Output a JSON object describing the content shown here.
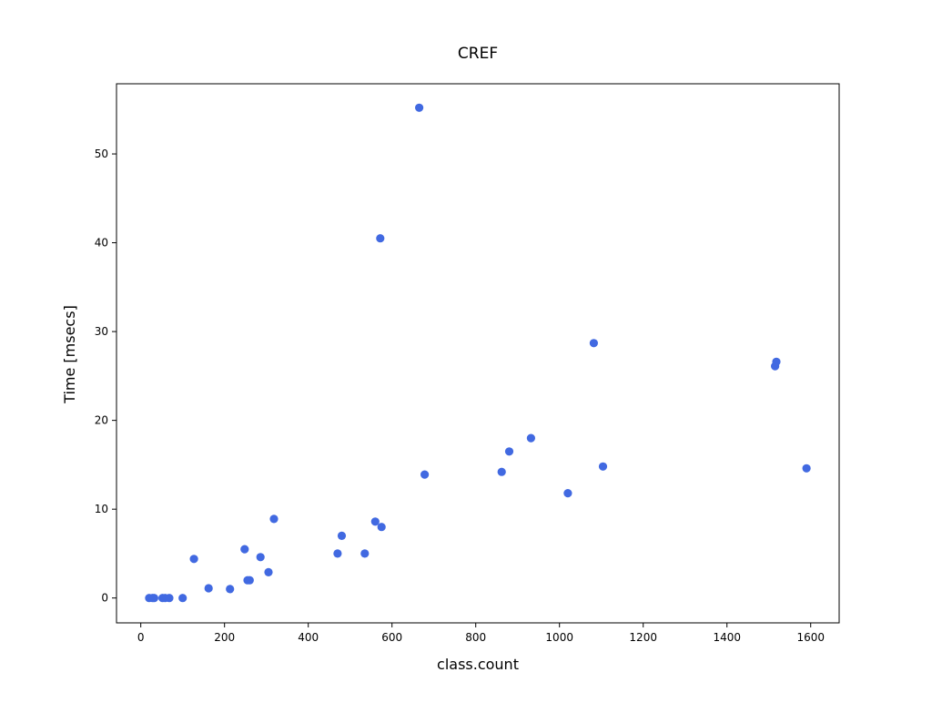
{
  "chart_data": {
    "type": "scatter",
    "title": "CREF",
    "xlabel": "class.count",
    "ylabel": "Time [msecs]",
    "xlim": [
      -58,
      1668
    ],
    "ylim": [
      -2.8,
      57.9
    ],
    "xticks": [
      0,
      200,
      400,
      600,
      800,
      1000,
      1200,
      1400,
      1600
    ],
    "yticks": [
      0,
      10,
      20,
      30,
      40,
      50
    ],
    "grid": false,
    "color": "#4169e1",
    "series": [
      {
        "points": [
          [
            20,
            0
          ],
          [
            28,
            0
          ],
          [
            32,
            0
          ],
          [
            52,
            0
          ],
          [
            58,
            0
          ],
          [
            68,
            0
          ],
          [
            100,
            0
          ],
          [
            127,
            4.4
          ],
          [
            162,
            1.1
          ],
          [
            213,
            1.0
          ],
          [
            248,
            5.5
          ],
          [
            255,
            2.0
          ],
          [
            260,
            2.0
          ],
          [
            286,
            4.6
          ],
          [
            305,
            2.9
          ],
          [
            318,
            8.9
          ],
          [
            470,
            5.0
          ],
          [
            480,
            7.0
          ],
          [
            535,
            5.0
          ],
          [
            560,
            8.6
          ],
          [
            572,
            40.5
          ],
          [
            575,
            8.0
          ],
          [
            665,
            55.2
          ],
          [
            678,
            13.9
          ],
          [
            862,
            14.2
          ],
          [
            880,
            16.5
          ],
          [
            932,
            18.0
          ],
          [
            1020,
            11.8
          ],
          [
            1082,
            28.7
          ],
          [
            1104,
            14.8
          ],
          [
            1515,
            26.1
          ],
          [
            1518,
            26.6
          ],
          [
            1590,
            14.6
          ]
        ]
      }
    ]
  }
}
